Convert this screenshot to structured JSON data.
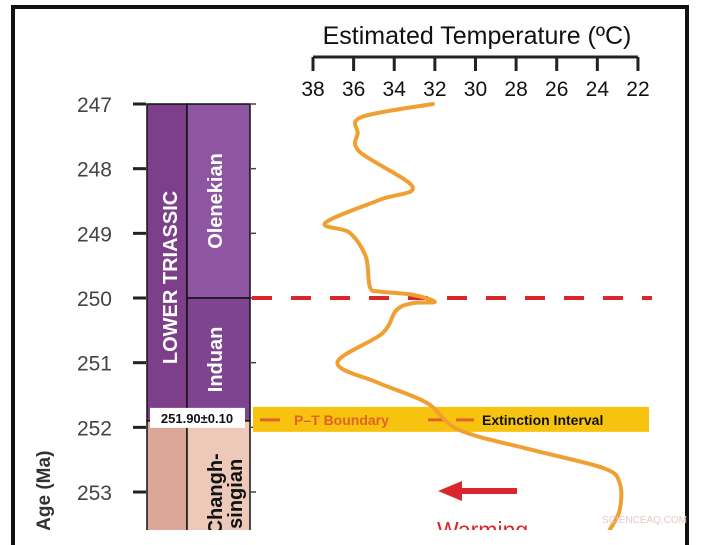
{
  "chart_data": {
    "type": "line",
    "title": "Estimated Temperature (ºC)",
    "ylabel": "Age (Ma)",
    "xlim": [
      38,
      22
    ],
    "ylim": [
      247,
      253.6
    ],
    "x_axis_position": "top",
    "x_reversed": true,
    "y_reversed": true,
    "x_ticks": [
      "38",
      "36",
      "34",
      "32",
      "30",
      "28",
      "26",
      "24",
      "22"
    ],
    "y_ticks": [
      "247",
      "248",
      "249",
      "250",
      "251",
      "252",
      "253"
    ],
    "series": [
      {
        "color": "#f0a032",
        "points": [
          [
            32.1,
            247.0
          ],
          [
            35.6,
            247.2
          ],
          [
            35.8,
            247.45
          ],
          [
            35.7,
            247.74
          ],
          [
            33.1,
            248.28
          ],
          [
            34.7,
            248.48
          ],
          [
            37.4,
            248.84
          ],
          [
            36.2,
            248.99
          ],
          [
            35.4,
            249.36
          ],
          [
            35.2,
            249.83
          ],
          [
            34.7,
            249.9
          ],
          [
            33.1,
            249.95
          ],
          [
            32.0,
            250.06
          ],
          [
            33.1,
            250.08
          ],
          [
            33.9,
            250.19
          ],
          [
            34.6,
            250.55
          ],
          [
            36.8,
            251.0
          ],
          [
            34.8,
            251.31
          ],
          [
            32.4,
            251.62
          ],
          [
            30.8,
            252.04
          ],
          [
            27.2,
            252.35
          ],
          [
            23.7,
            252.63
          ],
          [
            22.9,
            252.86
          ],
          [
            22.9,
            253.28
          ],
          [
            23.4,
            253.59
          ]
        ]
      }
    ],
    "boundary_line_age": 250,
    "boundary_line_color": "#d9262c",
    "band": {
      "age": 251.9,
      "color": "#f7c30e",
      "pt_label": "P–T Boundary",
      "ext_label": "Extinction Interval",
      "pt_color": "#e0622a"
    },
    "arrow": {
      "label": "Warming",
      "color": "#d9262c",
      "direction": "left"
    },
    "strat": {
      "system": "LOWER TRIASSIC",
      "stages": [
        {
          "name": "Olenekian",
          "from": 247,
          "to": 250,
          "color": "#8e55a0"
        },
        {
          "name": "Induan",
          "from": 250,
          "to": 251.9,
          "color": "#7f4490"
        },
        {
          "name": "Changh-singian",
          "from": 251.9,
          "to": 253.6,
          "color": "#ecc9b9"
        }
      ],
      "system_color": "#7d3f8a",
      "permian_color": "#dba797",
      "boundary_age_label": "251.90±0.10"
    }
  },
  "watermark": "SCIENCEAQ.COM"
}
